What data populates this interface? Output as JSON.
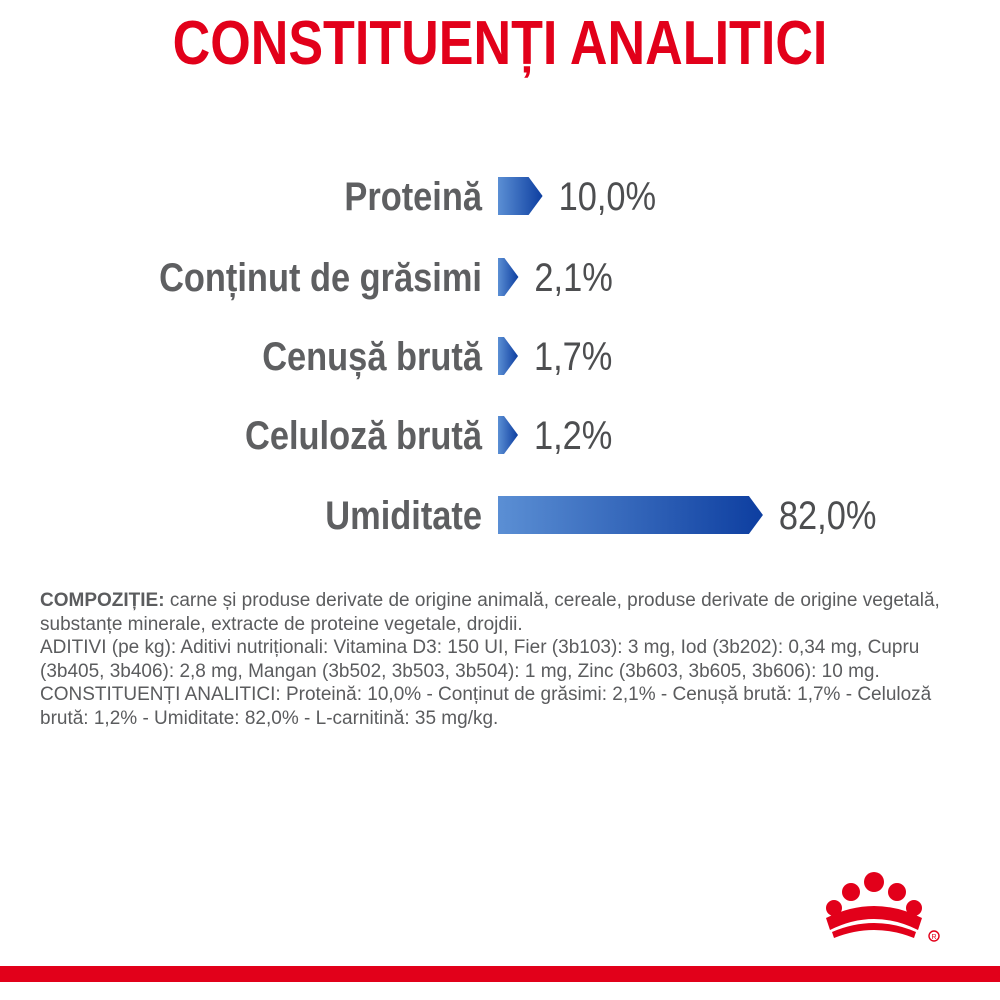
{
  "header": {
    "title": "CONSTITUENȚI ANALITICI"
  },
  "chart_data": {
    "type": "bar",
    "orientation": "horizontal",
    "categories": [
      "Proteină",
      "Conținut de grăsimi",
      "Cenușă brută",
      "Celuloză brută",
      "Umiditate"
    ],
    "values": [
      10.0,
      2.1,
      1.7,
      1.2,
      82.0
    ],
    "value_labels": [
      "10,0%",
      "2,1%",
      "1,7%",
      "1,2%",
      "82,0%"
    ],
    "title": "CONSTITUENȚI ANALITICI",
    "xlabel": "",
    "ylabel": "",
    "xlim": [
      0,
      100
    ],
    "grid": false,
    "colors": {
      "bar_start": "#5b8fd4",
      "bar_end": "#0d3ea0"
    }
  },
  "composition": {
    "heading": "COMPOZIȚIE:",
    "text": " carne și produse derivate de origine animală, cereale, produse derivate de origine vegetală, substanțe minerale, extracte de proteine vegetale, drojdii.",
    "additives": "ADITIVI (pe kg): Aditivi nutriționali: Vitamina D3: 150 UI, Fier (3b103): 3 mg, Iod (3b202): 0,34 mg, Cupru (3b405, 3b406): 2,8 mg, Mangan (3b502, 3b503, 3b504): 1 mg, Zinc (3b603, 3b605, 3b606): 10 mg.",
    "constituents": "CONSTITUENȚI ANALITICI: Proteină: 10,0% - Conținut de grăsimi: 2,1% - Cenușă brută: 1,7% - Celuloză brută: 1,2% - Umiditate: 82,0% - L-carnitină: 35 mg/kg."
  },
  "brand": {
    "logo_icon": "crown-icon",
    "color": "#e2001a"
  }
}
